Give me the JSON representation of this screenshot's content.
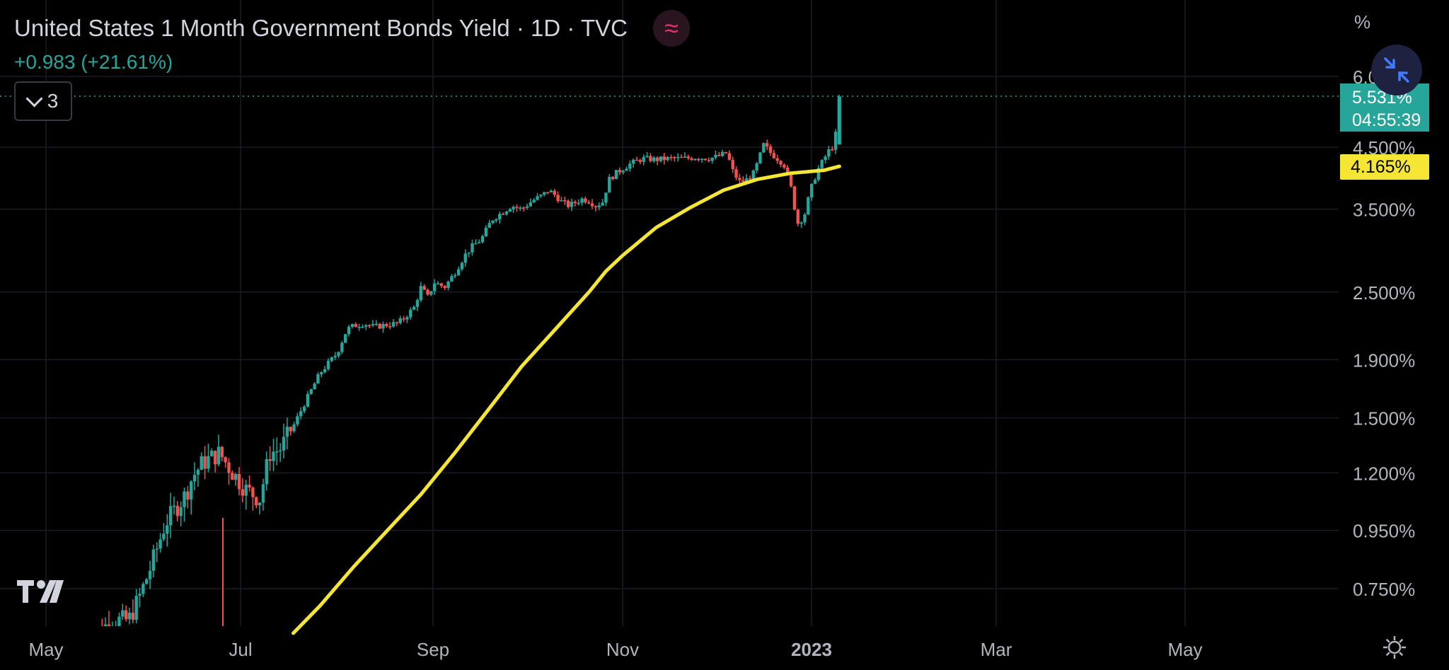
{
  "header": {
    "title": "United States 1 Month Government Bonds Yield · 1D · TVC",
    "change": "+0.983 (+21.61%)",
    "indicator_icon": "approx-wave-icon",
    "indicator_color": "#e0306b"
  },
  "indicators_toggle": {
    "count": "3",
    "icon": "chevron-down-icon"
  },
  "price_scale": {
    "unit": "%",
    "labels": [
      "6.000%",
      "4.500%",
      "3.500%",
      "2.500%",
      "1.900%",
      "1.500%",
      "1.200%",
      "0.950%",
      "0.750%"
    ]
  },
  "last_price_tag": {
    "value": "5.531%",
    "countdown": "04:55:39",
    "color": "#26a69a"
  },
  "ma_tag": {
    "value": "4.165%",
    "color": "#f5e636"
  },
  "time_scale": {
    "labels": [
      "May",
      "Jul",
      "Sep",
      "Nov",
      "2023",
      "Mar",
      "May"
    ]
  },
  "colors": {
    "up": "#26a69a",
    "down": "#ef5350",
    "moving_average": "#f5e636",
    "background": "#000000"
  },
  "icons": {
    "fullscreen": "collapse-arrows-icon",
    "logo": "tradingview-logo-icon",
    "settings": "gear-icon"
  },
  "chart_data": {
    "type": "candlestick",
    "title": "United States 1 Month Government Bonds Yield · 1D · TVC",
    "y_scale": "log",
    "ylim": [
      0.62,
      6.4
    ],
    "y_ticks": [
      6.0,
      4.5,
      3.5,
      2.5,
      1.9,
      1.5,
      1.2,
      0.95,
      0.75
    ],
    "x_ticks": [
      "May",
      "Jul",
      "Sep",
      "Nov",
      "2023",
      "Mar",
      "May"
    ],
    "last_value": 5.531,
    "close_path": [
      [
        0.0,
        0.6
      ],
      [
        0.08,
        0.66
      ],
      [
        0.13,
        0.66
      ],
      [
        0.16,
        0.72
      ],
      [
        0.19,
        0.8
      ],
      [
        0.24,
        0.98
      ],
      [
        0.3,
        1.1
      ],
      [
        0.32,
        1.18
      ],
      [
        0.35,
        1.25
      ],
      [
        0.4,
        1.3
      ],
      [
        0.44,
        1.2
      ],
      [
        0.48,
        1.12
      ],
      [
        0.52,
        1.08
      ],
      [
        0.55,
        1.3
      ],
      [
        0.58,
        1.32
      ],
      [
        0.62,
        1.45
      ],
      [
        0.66,
        1.62
      ],
      [
        0.7,
        1.8
      ],
      [
        0.75,
        1.95
      ],
      [
        0.78,
        2.15
      ],
      [
        0.8,
        2.18
      ],
      [
        0.83,
        2.2
      ],
      [
        0.86,
        2.17
      ],
      [
        0.9,
        2.19
      ],
      [
        0.93,
        2.2
      ],
      [
        0.95,
        2.25
      ],
      [
        0.98,
        2.35
      ],
      [
        1.0,
        2.55
      ],
      [
        1.02,
        2.45
      ],
      [
        1.04,
        2.6
      ],
      [
        1.07,
        2.55
      ],
      [
        1.1,
        2.7
      ],
      [
        1.13,
        2.9
      ],
      [
        1.15,
        3.0
      ],
      [
        1.18,
        3.1
      ],
      [
        1.21,
        3.35
      ],
      [
        1.24,
        3.45
      ],
      [
        1.27,
        3.55
      ],
      [
        1.3,
        3.5
      ],
      [
        1.33,
        3.62
      ],
      [
        1.36,
        3.7
      ],
      [
        1.38,
        3.78
      ],
      [
        1.4,
        3.7
      ],
      [
        1.42,
        3.6
      ],
      [
        1.44,
        3.55
      ],
      [
        1.46,
        3.6
      ],
      [
        1.48,
        3.65
      ],
      [
        1.5,
        3.62
      ],
      [
        1.52,
        3.55
      ],
      [
        1.54,
        3.6
      ],
      [
        1.56,
        3.95
      ],
      [
        1.58,
        4.05
      ],
      [
        1.62,
        4.2
      ],
      [
        1.66,
        4.3
      ],
      [
        1.7,
        4.28
      ],
      [
        1.74,
        4.3
      ],
      [
        1.78,
        4.3
      ],
      [
        1.82,
        4.32
      ],
      [
        1.86,
        4.3
      ],
      [
        1.89,
        4.35
      ],
      [
        1.91,
        4.4
      ],
      [
        1.93,
        4.05
      ],
      [
        1.95,
        3.9
      ],
      [
        1.97,
        3.95
      ],
      [
        1.99,
        4.05
      ],
      [
        2.0,
        4.2
      ],
      [
        2.02,
        4.55
      ],
      [
        2.04,
        4.4
      ],
      [
        2.06,
        4.3
      ],
      [
        2.08,
        4.2
      ],
      [
        2.1,
        3.85
      ],
      [
        2.12,
        3.3
      ],
      [
        2.14,
        3.4
      ],
      [
        2.16,
        3.8
      ],
      [
        2.18,
        4.1
      ],
      [
        2.2,
        4.3
      ],
      [
        2.22,
        4.5
      ],
      [
        2.23,
        4.5
      ],
      [
        2.245,
        5.531
      ]
    ],
    "moving_average": {
      "color": "#f5e636",
      "points": [
        [
          0.62,
          0.62
        ],
        [
          0.7,
          0.7
        ],
        [
          0.8,
          0.82
        ],
        [
          0.9,
          0.95
        ],
        [
          1.0,
          1.1
        ],
        [
          1.1,
          1.3
        ],
        [
          1.2,
          1.55
        ],
        [
          1.3,
          1.85
        ],
        [
          1.4,
          2.15
        ],
        [
          1.5,
          2.5
        ],
        [
          1.55,
          2.72
        ],
        [
          1.6,
          2.9
        ],
        [
          1.7,
          3.25
        ],
        [
          1.8,
          3.52
        ],
        [
          1.9,
          3.78
        ],
        [
          2.0,
          3.95
        ],
        [
          2.1,
          4.05
        ],
        [
          2.2,
          4.1
        ],
        [
          2.245,
          4.165
        ]
      ]
    }
  }
}
